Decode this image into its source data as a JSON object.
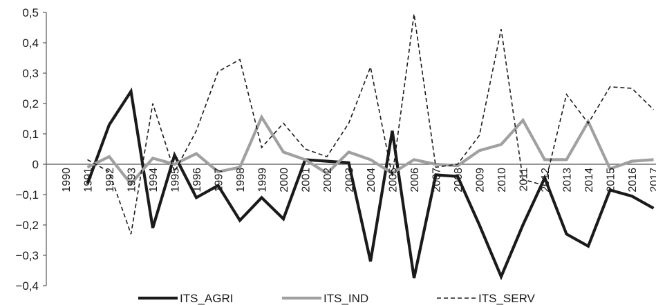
{
  "chart_data": {
    "type": "line",
    "title": "",
    "xlabel": "",
    "ylabel": "",
    "ylim": [
      -0.4,
      0.5
    ],
    "y_ticks": [
      0.5,
      0.4,
      0.3,
      0.2,
      0.1,
      0,
      -0.1,
      -0.2,
      -0.3,
      -0.4
    ],
    "y_tick_labels": [
      "0,5",
      "0,4",
      "0,3",
      "0,2",
      "0,1",
      "0",
      "−0,1",
      "−0,2",
      "−0,3",
      "−0,4"
    ],
    "categories": [
      "1990",
      "1991",
      "1992",
      "1993",
      "1994",
      "1995",
      "1996",
      "1997",
      "1998",
      "1999",
      "2000",
      "2001",
      "2002",
      "2003",
      "2004",
      "2005",
      "2006",
      "2007",
      "2008",
      "2009",
      "2010",
      "2011",
      "2012",
      "2013",
      "2014",
      "2015",
      "2016",
      "2017"
    ],
    "grid": false,
    "legend_position": "bottom",
    "series": [
      {
        "name": "ITS_AGRI",
        "color": "#1a1a1a",
        "style": "solid-thick",
        "values": [
          null,
          -0.065,
          0.13,
          0.24,
          -0.21,
          0.03,
          -0.11,
          -0.07,
          -0.185,
          -0.11,
          -0.18,
          0.015,
          0.01,
          0.005,
          -0.32,
          0.11,
          -0.375,
          -0.035,
          -0.04,
          -0.2,
          -0.37,
          -0.2,
          -0.045,
          -0.23,
          -0.27,
          -0.085,
          -0.105,
          -0.145
        ]
      },
      {
        "name": "ITS_IND",
        "color": "#a0a0a0",
        "style": "solid-thick",
        "values": [
          null,
          -0.01,
          0.025,
          -0.065,
          0.02,
          0.0,
          0.035,
          -0.025,
          -0.01,
          0.155,
          0.04,
          0.015,
          -0.03,
          0.04,
          0.015,
          -0.03,
          0.015,
          0.0,
          -0.005,
          0.045,
          0.065,
          0.145,
          0.015,
          0.015,
          0.14,
          -0.015,
          0.01,
          0.015
        ]
      },
      {
        "name": "ITS_SERV",
        "color": "#1a1a1a",
        "style": "dashed",
        "values": [
          null,
          0.015,
          -0.025,
          -0.23,
          0.2,
          -0.025,
          0.11,
          0.305,
          0.345,
          0.055,
          0.135,
          0.05,
          0.025,
          0.135,
          0.32,
          -0.04,
          0.495,
          -0.01,
          0.0,
          0.095,
          0.445,
          -0.05,
          -0.07,
          0.23,
          0.135,
          0.255,
          0.25,
          0.18
        ]
      }
    ]
  }
}
